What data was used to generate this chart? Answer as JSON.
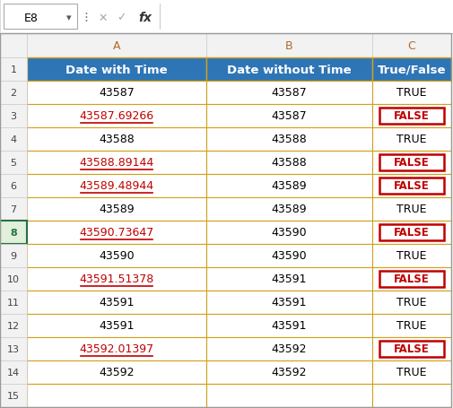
{
  "formula_bar_text": "E8",
  "col_headers": [
    "A",
    "B",
    "C"
  ],
  "header_row": [
    "Date with Time",
    "Date without Time",
    "True/False"
  ],
  "col_A": [
    "43587",
    "43587.69266",
    "43588",
    "43588.89144",
    "43589.48944",
    "43589",
    "43590.73647",
    "43590",
    "43591.51378",
    "43591",
    "43591",
    "43592.01397",
    "43592",
    ""
  ],
  "col_B": [
    "43587",
    "43587",
    "43588",
    "43588",
    "43589",
    "43589",
    "43590",
    "43590",
    "43591",
    "43591",
    "43591",
    "43592",
    "43592",
    ""
  ],
  "col_C": [
    "TRUE",
    "FALSE",
    "TRUE",
    "FALSE",
    "FALSE",
    "TRUE",
    "FALSE",
    "TRUE",
    "FALSE",
    "TRUE",
    "TRUE",
    "FALSE",
    "TRUE",
    ""
  ],
  "col_A_is_decimal": [
    false,
    true,
    false,
    true,
    true,
    false,
    true,
    false,
    true,
    false,
    false,
    true,
    false,
    false
  ],
  "col_C_is_false": [
    false,
    true,
    false,
    true,
    true,
    false,
    true,
    false,
    true,
    false,
    false,
    true,
    false,
    false
  ],
  "selected_row": 8,
  "header_bg": "#2E75B6",
  "header_text_color": "#FFFFFF",
  "decimal_color": "#C00000",
  "normal_color": "#000000",
  "false_box_color": "#C00000",
  "false_text_color": "#C00000",
  "true_text_color": "#000000",
  "grid_line_color": "#D4A017",
  "row_num_bg": "#F2F2F2",
  "col_header_bg": "#F2F2F2",
  "selected_row_num_bg": "#E2EFDA",
  "selected_row_num_border": "#217346",
  "fig_width": 5.05,
  "fig_height": 4.56
}
